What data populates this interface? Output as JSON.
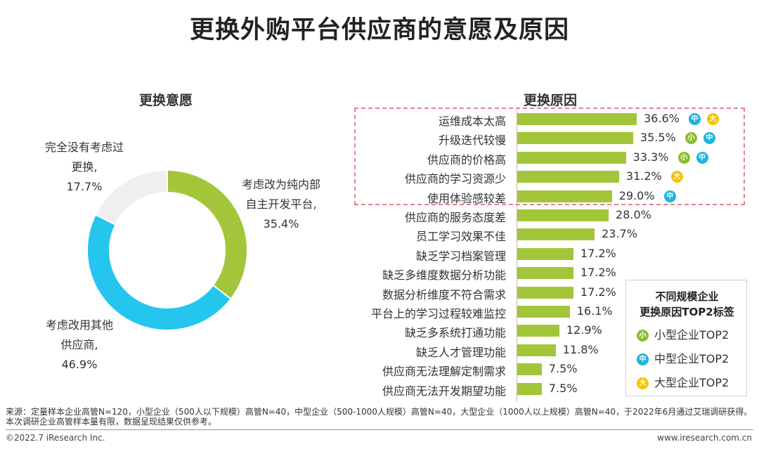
{
  "title": "更换外购平台供应商的意愿及原因",
  "donut": {
    "subtitle": "更换意愿",
    "labels": {
      "a": [
        "考虑改为纯内部",
        "自主开发平台,",
        "35.4%"
      ],
      "b": [
        "考虑改用其他",
        "供应商,",
        "46.9%"
      ],
      "c": [
        "完全没有考虑过",
        "更换,",
        "17.7%"
      ]
    }
  },
  "bars": {
    "subtitle": "更换原因"
  },
  "chart_data": [
    {
      "type": "pie",
      "title": "更换意愿",
      "categories": [
        "考虑改为纯内部自主开发平台",
        "考虑改用其他供应商",
        "完全没有考虑过更换"
      ],
      "values": [
        35.4,
        46.9,
        17.7
      ],
      "colors": [
        "#a3c53a",
        "#25c6ee",
        "#efefef"
      ]
    },
    {
      "type": "bar",
      "title": "更换原因",
      "categories": [
        "运维成本太高",
        "升级迭代较慢",
        "供应商的价格高",
        "供应商的学习资源少",
        "使用体验感较差",
        "供应商的服务态度差",
        "员工学习效果不佳",
        "缺乏学习档案管理",
        "缺乏多维度数据分析功能",
        "数据分析维度不符合需求",
        "平台上的学习过程较难监控",
        "缺乏多系统打通功能",
        "缺乏人才管理功能",
        "供应商无法理解定制需求",
        "供应商无法开发期望功能"
      ],
      "values": [
        36.6,
        35.5,
        33.3,
        31.2,
        29.0,
        28.0,
        23.7,
        17.2,
        17.2,
        17.2,
        16.1,
        12.9,
        11.8,
        7.5,
        7.5
      ],
      "value_labels": [
        "36.6%",
        "35.5%",
        "33.3%",
        "31.2%",
        "29.0%",
        "28.0%",
        "23.7%",
        "17.2%",
        "17.2%",
        "17.2%",
        "16.1%",
        "12.9%",
        "11.8%",
        "7.5%",
        "7.5%"
      ],
      "tags": [
        [
          "中",
          "大"
        ],
        [
          "小",
          "中"
        ],
        [
          "小",
          "中"
        ],
        [
          "大"
        ],
        [
          "中"
        ],
        [],
        [],
        [],
        [],
        [],
        [],
        [],
        [],
        [],
        []
      ],
      "xlim": [
        0,
        40
      ]
    }
  ],
  "tag_colors": {
    "小": "#8cbf2e",
    "中": "#1cb5e2",
    "大": "#f2c500"
  },
  "legend": {
    "title": "不同规模企业\n更换原因TOP2标签",
    "items": [
      {
        "badge": "小",
        "label": "小型企业TOP2"
      },
      {
        "badge": "中",
        "label": "中型企业TOP2"
      },
      {
        "badge": "大",
        "label": "大型企业TOP2"
      }
    ]
  },
  "source": "来源：定量样本企业高管N=120，小型企业（500人以下规模）高管N=40，中型企业（500-1000人规模）高管N=40，大型企业（1000人以上规模）高管N=40，于2022年6月通过艾瑞调研获得。本次调研企业高管样本量有限，数据呈现结果仅供参考。",
  "copyright": "©2022.7 iResearch Inc.",
  "website": "www.iresearch.com.cn"
}
